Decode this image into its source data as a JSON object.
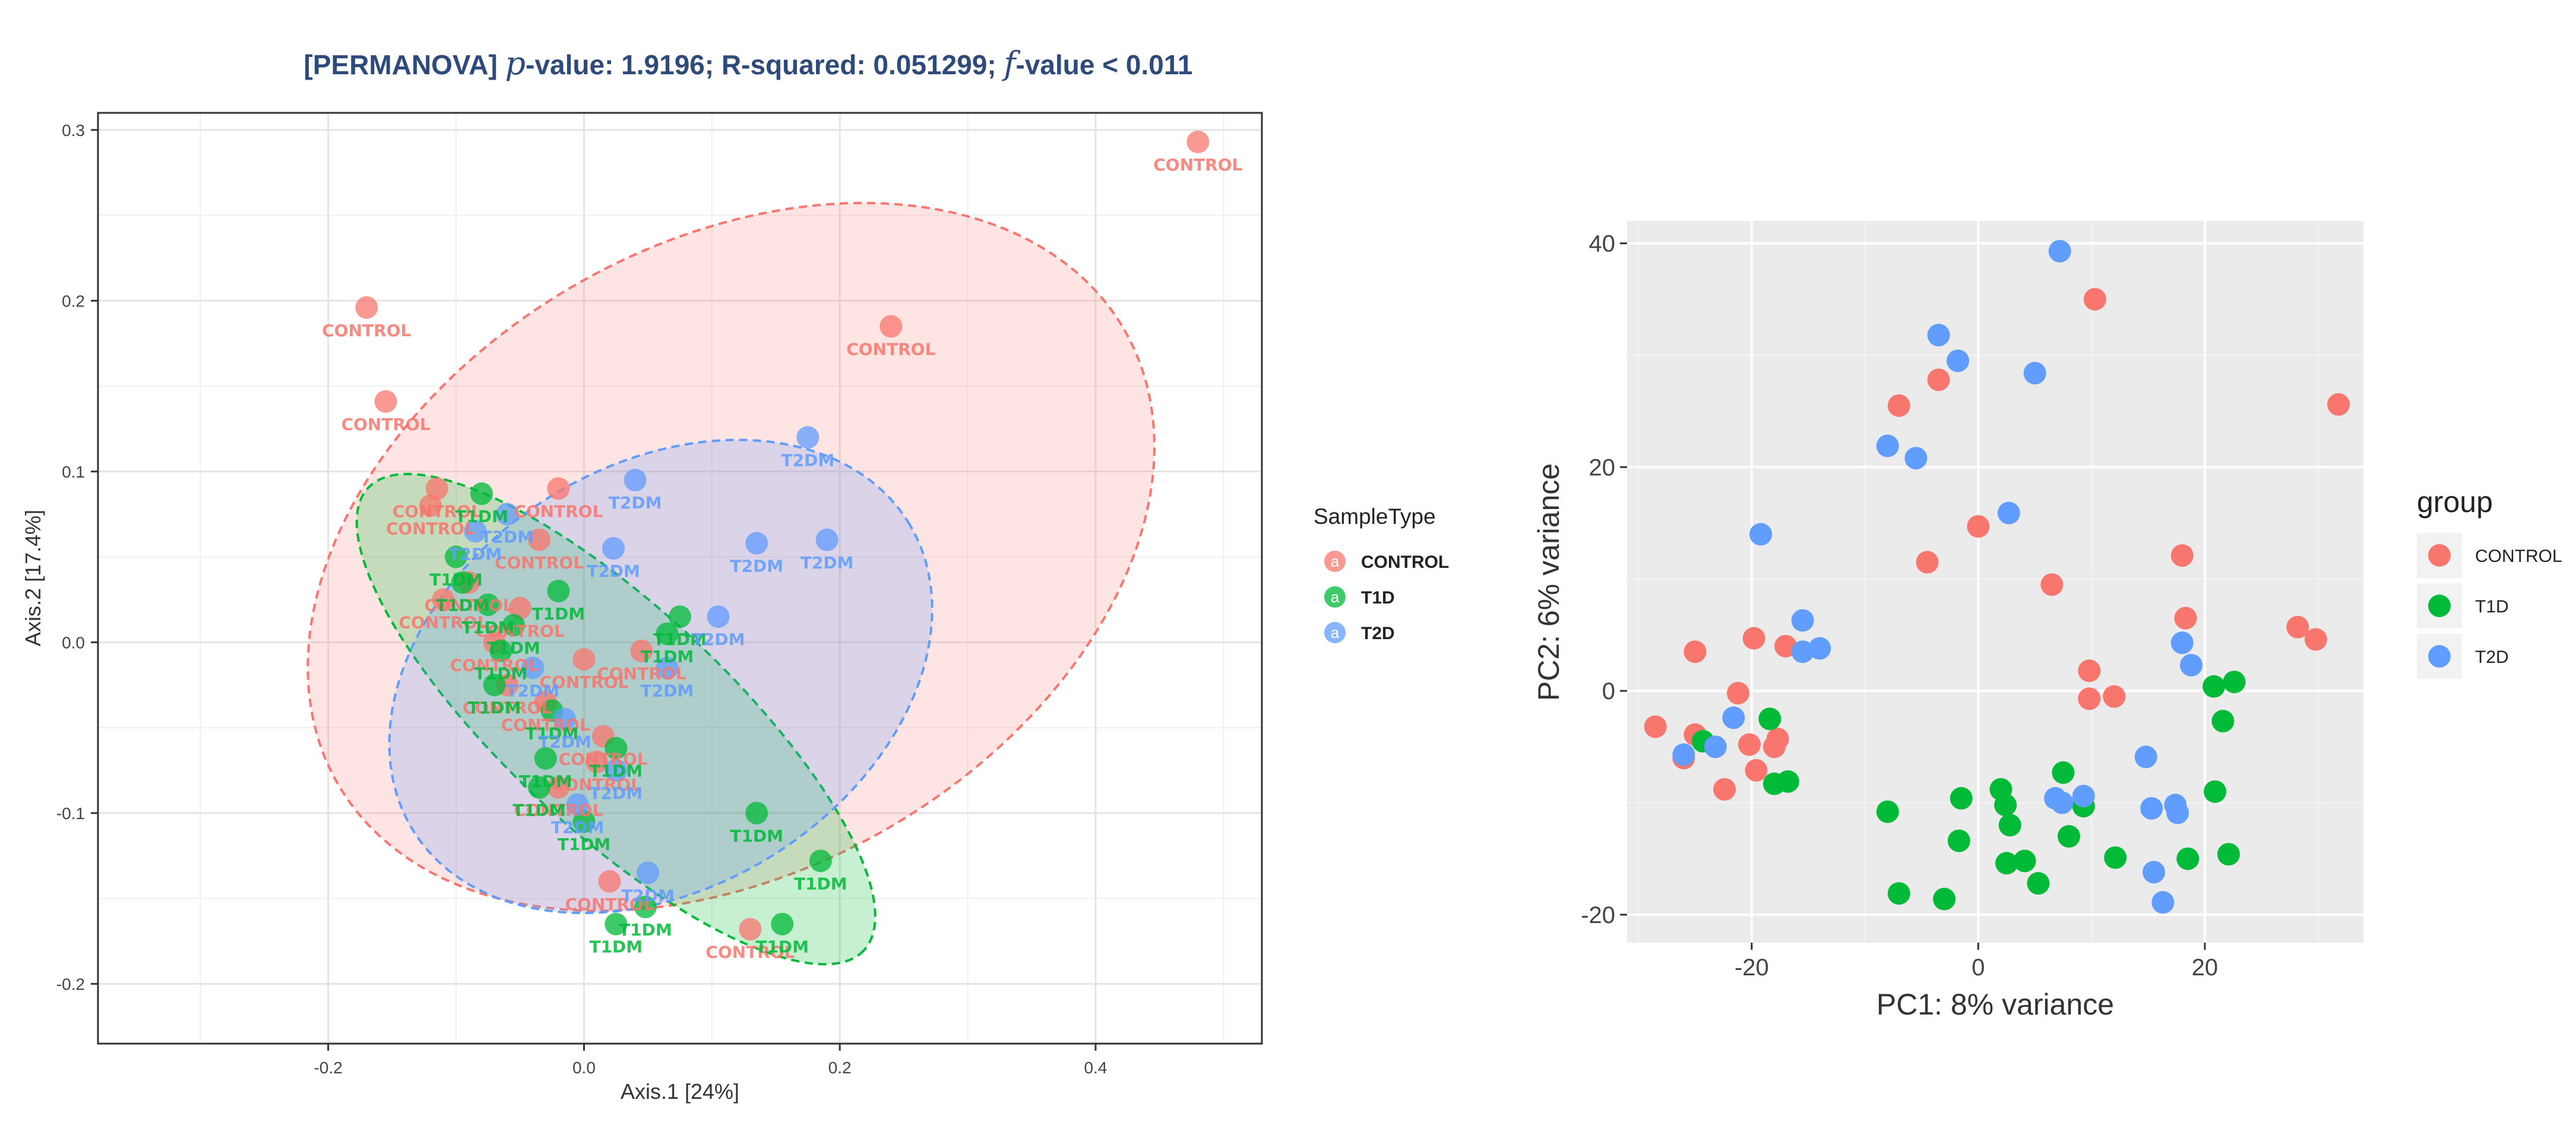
{
  "colors": {
    "control": "#f8766d",
    "t1d": "#00ba38",
    "t2d": "#619cff",
    "title": "#2e4a7a"
  },
  "chart_data": [
    {
      "type": "scatter",
      "title": "[PERMANOVA] p-value: 1.9196; R-squared: 0.051299; f-value < 0.011",
      "title_parts": {
        "prefix": "[PERMANOVA] ",
        "p": "p",
        "p_rest": "-value: 1.9196; R-squared: 0.051299; ",
        "f": "f",
        "f_rest": "-value < 0.011"
      },
      "xlabel": "Axis.1   [24%]",
      "ylabel": "Axis.2   [17.4%]",
      "xlim": [
        -0.38,
        0.53
      ],
      "ylim": [
        -0.235,
        0.31
      ],
      "xticks": [
        -0.2,
        0.0,
        0.2,
        0.4
      ],
      "xtick_labels": [
        "-0.2",
        "0.0",
        "0.2",
        "0.4"
      ],
      "yticks": [
        -0.2,
        -0.1,
        0.0,
        0.1,
        0.2,
        0.3
      ],
      "ytick_labels": [
        "-0.2",
        "-0.1",
        "0.0",
        "0.1",
        "0.2",
        "0.3"
      ],
      "legend": {
        "title": "SampleType",
        "entries": [
          "CONTROL",
          "T1D",
          "T2D"
        ],
        "glyph": "a"
      },
      "ellipses": [
        {
          "group": "CONTROL",
          "cx": 0.115,
          "cy": 0.05,
          "rx": 0.355,
          "ry": 0.245,
          "angle": 30
        },
        {
          "group": "T1D",
          "cx": 0.025,
          "cy": -0.045,
          "rx": 0.265,
          "ry": 0.087,
          "angle": -43
        },
        {
          "group": "T2D",
          "cx": 0.06,
          "cy": -0.02,
          "rx": 0.228,
          "ry": 0.165,
          "angle": 32
        }
      ],
      "series": [
        {
          "name": "CONTROL",
          "points": [
            {
              "x": 0.48,
              "y": 0.293,
              "label": "CONTROL"
            },
            {
              "x": -0.17,
              "y": 0.196,
              "label": "CONTROL"
            },
            {
              "x": 0.24,
              "y": 0.185,
              "label": "CONTROL"
            },
            {
              "x": -0.155,
              "y": 0.141,
              "label": "CONTROL"
            },
            {
              "x": -0.115,
              "y": 0.09,
              "label": "CONTROL"
            },
            {
              "x": -0.12,
              "y": 0.08,
              "label": "CONTROL"
            },
            {
              "x": -0.02,
              "y": 0.09,
              "label": "CONTROL"
            },
            {
              "x": -0.035,
              "y": 0.06,
              "label": "CONTROL"
            },
            {
              "x": -0.09,
              "y": 0.035,
              "label": "CONTROL"
            },
            {
              "x": -0.11,
              "y": 0.025,
              "label": "CONTROL"
            },
            {
              "x": -0.05,
              "y": 0.02,
              "label": "CONTROL"
            },
            {
              "x": -0.07,
              "y": 0.0,
              "label": "CONTROL"
            },
            {
              "x": 0.0,
              "y": -0.01,
              "label": "CONTROL"
            },
            {
              "x": 0.045,
              "y": -0.005,
              "label": "CONTROL"
            },
            {
              "x": -0.06,
              "y": -0.025,
              "label": "CONTROL"
            },
            {
              "x": -0.03,
              "y": -0.035,
              "label": "CONTROL"
            },
            {
              "x": 0.015,
              "y": -0.055,
              "label": "CONTROL"
            },
            {
              "x": 0.01,
              "y": -0.07,
              "label": "CONTROL"
            },
            {
              "x": -0.02,
              "y": -0.085,
              "label": "CONTROL"
            },
            {
              "x": 0.02,
              "y": -0.14,
              "label": "CONTROL"
            },
            {
              "x": 0.13,
              "y": -0.168,
              "label": "CONTROL"
            }
          ]
        },
        {
          "name": "T1D",
          "points": [
            {
              "x": -0.08,
              "y": 0.087,
              "label": "T1DM"
            },
            {
              "x": -0.1,
              "y": 0.05,
              "label": "T1DM"
            },
            {
              "x": -0.095,
              "y": 0.035,
              "label": "T1DM"
            },
            {
              "x": -0.075,
              "y": 0.022,
              "label": "T1DM"
            },
            {
              "x": -0.055,
              "y": 0.01,
              "label": "T1DM"
            },
            {
              "x": -0.02,
              "y": 0.03,
              "label": "T1DM"
            },
            {
              "x": -0.065,
              "y": -0.005,
              "label": "T1DM"
            },
            {
              "x": -0.07,
              "y": -0.025,
              "label": "T1DM"
            },
            {
              "x": -0.025,
              "y": -0.04,
              "label": "T1DM"
            },
            {
              "x": -0.03,
              "y": -0.068,
              "label": "T1DM"
            },
            {
              "x": -0.035,
              "y": -0.085,
              "label": "T1DM"
            },
            {
              "x": 0.0,
              "y": -0.105,
              "label": "T1DM"
            },
            {
              "x": 0.075,
              "y": 0.015,
              "label": "T1DM"
            },
            {
              "x": 0.065,
              "y": 0.005,
              "label": "T1DM"
            },
            {
              "x": 0.025,
              "y": -0.062,
              "label": "T1DM"
            },
            {
              "x": 0.135,
              "y": -0.1,
              "label": "T1DM"
            },
            {
              "x": 0.185,
              "y": -0.128,
              "label": "T1DM"
            },
            {
              "x": 0.048,
              "y": -0.155,
              "label": "T1DM"
            },
            {
              "x": 0.025,
              "y": -0.165,
              "label": "T1DM"
            },
            {
              "x": 0.155,
              "y": -0.165,
              "label": "T1DM"
            }
          ]
        },
        {
          "name": "T2D",
          "points": [
            {
              "x": 0.175,
              "y": 0.12,
              "label": "T2DM"
            },
            {
              "x": 0.04,
              "y": 0.095,
              "label": "T2DM"
            },
            {
              "x": 0.135,
              "y": 0.058,
              "label": "T2DM"
            },
            {
              "x": 0.19,
              "y": 0.06,
              "label": "T2DM"
            },
            {
              "x": -0.06,
              "y": 0.075,
              "label": "T2DM"
            },
            {
              "x": -0.085,
              "y": 0.065,
              "label": "T2DM"
            },
            {
              "x": 0.023,
              "y": 0.055,
              "label": "T2DM"
            },
            {
              "x": 0.105,
              "y": 0.015,
              "label": "T2DM"
            },
            {
              "x": 0.065,
              "y": -0.015,
              "label": "T2DM"
            },
            {
              "x": -0.04,
              "y": -0.015,
              "label": "T2DM"
            },
            {
              "x": -0.015,
              "y": -0.045,
              "label": "T2DM"
            },
            {
              "x": 0.025,
              "y": -0.075,
              "label": "T2DM"
            },
            {
              "x": -0.005,
              "y": -0.095,
              "label": "T2DM"
            },
            {
              "x": 0.05,
              "y": -0.135,
              "label": "T2DM"
            }
          ]
        }
      ]
    },
    {
      "type": "scatter",
      "title": "",
      "xlabel": "PC1: 8% variance",
      "ylabel": "PC2: 6% variance",
      "xlim": [
        -31,
        34
      ],
      "ylim": [
        -22.5,
        42
      ],
      "xticks": [
        -20,
        0,
        20
      ],
      "xtick_labels": [
        "-20",
        "0",
        "20"
      ],
      "yticks": [
        -20,
        0,
        20,
        40
      ],
      "ytick_labels": [
        "-20",
        "0",
        "20",
        "40"
      ],
      "legend": {
        "title": "group",
        "entries": [
          "CONTROL",
          "T1D",
          "T2D"
        ]
      },
      "series": [
        {
          "name": "CONTROL",
          "points": [
            {
              "x": 10.3,
              "y": 35
            },
            {
              "x": -3.5,
              "y": 27.8
            },
            {
              "x": -7,
              "y": 25.5
            },
            {
              "x": 31.8,
              "y": 25.6
            },
            {
              "x": -4.5,
              "y": 11.5
            },
            {
              "x": 0,
              "y": 14.7
            },
            {
              "x": 6.5,
              "y": 9.5
            },
            {
              "x": 18,
              "y": 12.1
            },
            {
              "x": 18.3,
              "y": 6.5
            },
            {
              "x": 28.2,
              "y": 5.7
            },
            {
              "x": 29.8,
              "y": 4.6
            },
            {
              "x": -19.8,
              "y": 4.7
            },
            {
              "x": -17,
              "y": 4
            },
            {
              "x": -25,
              "y": 3.5
            },
            {
              "x": 9.8,
              "y": 1.8
            },
            {
              "x": 9.8,
              "y": -0.7
            },
            {
              "x": 12,
              "y": -0.5
            },
            {
              "x": -21.2,
              "y": -0.2
            },
            {
              "x": -28.5,
              "y": -3.2
            },
            {
              "x": -25,
              "y": -3.9
            },
            {
              "x": -17.7,
              "y": -4.3
            },
            {
              "x": -18,
              "y": -5
            },
            {
              "x": -20.2,
              "y": -4.8
            },
            {
              "x": -19.6,
              "y": -7.1
            },
            {
              "x": -22.4,
              "y": -8.8
            },
            {
              "x": -26,
              "y": -6
            }
          ]
        },
        {
          "name": "T1D",
          "points": [
            {
              "x": 20.8,
              "y": 0.4
            },
            {
              "x": 22.6,
              "y": 0.8
            },
            {
              "x": 21.6,
              "y": -2.7
            },
            {
              "x": -18.4,
              "y": -2.5
            },
            {
              "x": -24.3,
              "y": -4.5
            },
            {
              "x": -18,
              "y": -8.3
            },
            {
              "x": -16.8,
              "y": -8.1
            },
            {
              "x": 7.5,
              "y": -7.3
            },
            {
              "x": 2,
              "y": -8.8
            },
            {
              "x": -1.5,
              "y": -9.6
            },
            {
              "x": 2.4,
              "y": -10.2
            },
            {
              "x": 9.3,
              "y": -10.3
            },
            {
              "x": -8,
              "y": -10.8
            },
            {
              "x": 2.8,
              "y": -12
            },
            {
              "x": 8,
              "y": -13
            },
            {
              "x": -1.7,
              "y": -13.4
            },
            {
              "x": 20.9,
              "y": -9
            },
            {
              "x": 12.1,
              "y": -14.9
            },
            {
              "x": 18.5,
              "y": -15
            },
            {
              "x": 22.1,
              "y": -14.6
            },
            {
              "x": 4.1,
              "y": -15.2
            },
            {
              "x": 2.5,
              "y": -15.4
            },
            {
              "x": 5.3,
              "y": -17.2
            },
            {
              "x": -7,
              "y": -18.1
            },
            {
              "x": -3,
              "y": -18.6
            }
          ]
        },
        {
          "name": "T2D",
          "points": [
            {
              "x": 7.2,
              "y": 39.3
            },
            {
              "x": -3.5,
              "y": 31.8
            },
            {
              "x": -1.8,
              "y": 29.5
            },
            {
              "x": 5,
              "y": 28.4
            },
            {
              "x": -8,
              "y": 21.9
            },
            {
              "x": -5.5,
              "y": 20.8
            },
            {
              "x": 2.7,
              "y": 15.9
            },
            {
              "x": -19.2,
              "y": 14
            },
            {
              "x": -15.5,
              "y": 6.3
            },
            {
              "x": -15.5,
              "y": 3.5
            },
            {
              "x": -14,
              "y": 3.8
            },
            {
              "x": 18,
              "y": 4.3
            },
            {
              "x": 18.8,
              "y": 2.3
            },
            {
              "x": -21.6,
              "y": -2.4
            },
            {
              "x": -23.2,
              "y": -5
            },
            {
              "x": -26,
              "y": -5.7
            },
            {
              "x": 14.8,
              "y": -5.9
            },
            {
              "x": 6.8,
              "y": -9.6
            },
            {
              "x": 7.4,
              "y": -10
            },
            {
              "x": 9.3,
              "y": -9.4
            },
            {
              "x": 15.3,
              "y": -10.5
            },
            {
              "x": 17.4,
              "y": -10.2
            },
            {
              "x": 17.6,
              "y": -10.9
            },
            {
              "x": 15.5,
              "y": -16.2
            },
            {
              "x": 16.3,
              "y": -18.9
            }
          ]
        }
      ]
    }
  ]
}
